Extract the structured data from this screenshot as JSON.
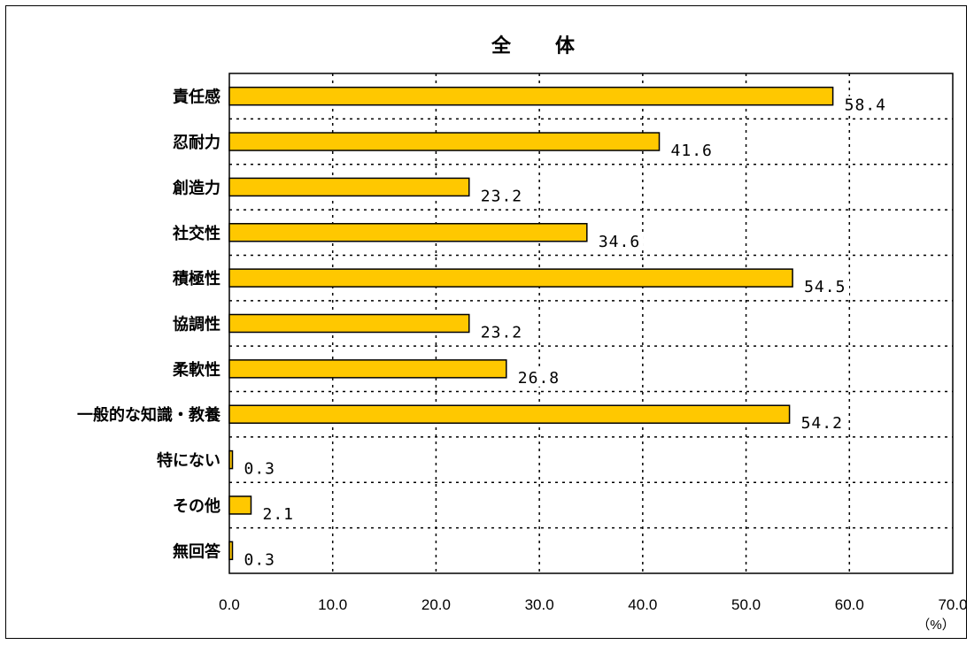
{
  "chart_data": {
    "type": "bar",
    "orientation": "horizontal",
    "title": "全　　体",
    "unit": "（%）",
    "categories": [
      "責任感",
      "忍耐力",
      "創造力",
      "社交性",
      "積極性",
      "協調性",
      "柔軟性",
      "一般的な知識・教養",
      "特にない",
      "その他",
      "無回答"
    ],
    "values": [
      58.4,
      41.6,
      23.2,
      34.6,
      54.5,
      23.2,
      26.8,
      54.2,
      0.3,
      2.1,
      0.3
    ],
    "value_labels": [
      "58.4",
      "41.6",
      "23.2",
      "34.6",
      "54.5",
      "23.2",
      "26.8",
      "54.2",
      "0.3",
      "2.1",
      "0.3"
    ],
    "tick_labels": [
      "0.0",
      "10.0",
      "20.0",
      "30.0",
      "40.0",
      "50.0",
      "60.0",
      "70.0"
    ],
    "xlim": [
      0,
      70
    ],
    "grid": true,
    "legend": "none",
    "colors": {
      "bar_fill": "#FFC800",
      "bar_stroke": "#000000"
    }
  }
}
